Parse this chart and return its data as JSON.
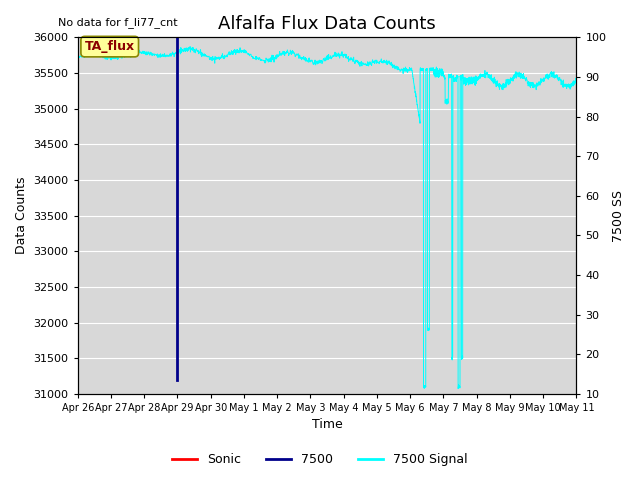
{
  "title": "Alfalfa Flux Data Counts",
  "top_left_text": "No data for f_li77_cnt",
  "xlabel": "Time",
  "ylabel_left": "Data Counts",
  "ylabel_right": "7500 SS",
  "ylim_left": [
    31000,
    36000
  ],
  "ylim_right": [
    10,
    100
  ],
  "yticks_left": [
    31000,
    31500,
    32000,
    32500,
    33000,
    33500,
    34000,
    34500,
    35000,
    35500,
    36000
  ],
  "yticks_right": [
    10,
    20,
    30,
    40,
    50,
    60,
    70,
    80,
    90,
    100
  ],
  "bg_color": "#d8d8d8",
  "legend_entries": [
    "Sonic",
    "7500",
    "7500 Signal"
  ],
  "legend_colors": [
    "red",
    "darkblue",
    "cyan"
  ],
  "annotation_box": "TA_flux",
  "annotation_box_color": "#ffff99",
  "annotation_box_border": "#888800",
  "title_fontsize": 13,
  "axis_fontsize": 9,
  "tick_fontsize": 8
}
